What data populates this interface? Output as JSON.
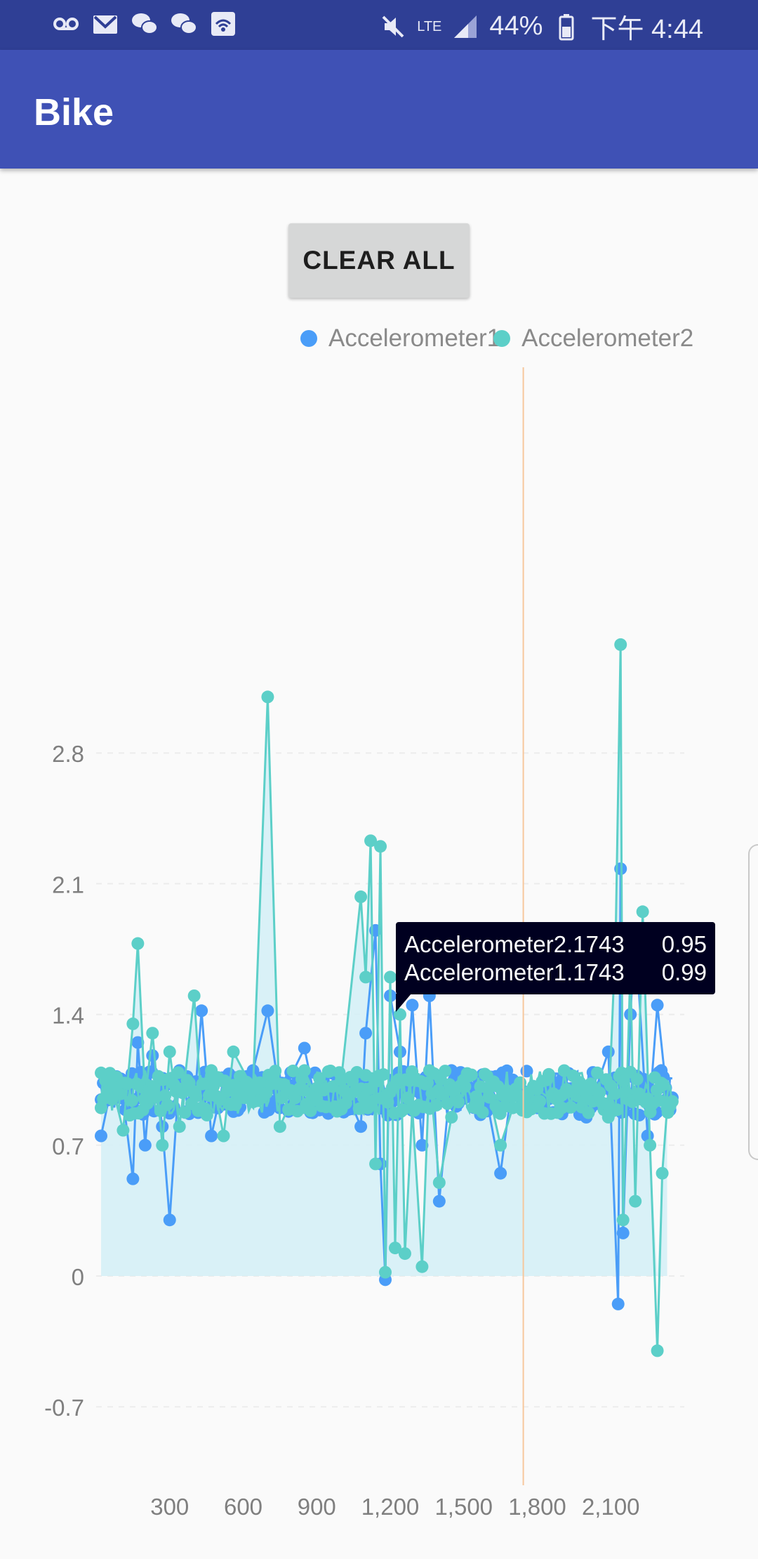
{
  "status_bar": {
    "battery": "44%",
    "time": "下午 4:44",
    "network": "LTE",
    "icons": [
      "voicemail-icon",
      "gmail-icon",
      "wechat-icon",
      "wechat-icon",
      "wifi-call-icon",
      "mute-icon",
      "lte-icon",
      "signal-icon",
      "battery-icon"
    ]
  },
  "app_bar": {
    "title": "Bike"
  },
  "clear_button": {
    "label": "CLEAR ALL"
  },
  "tooltip": {
    "rows": [
      {
        "label": "Accelerometer2.1743",
        "value": "0.95"
      },
      {
        "label": "Accelerometer1.1743",
        "value": "0.99"
      }
    ]
  },
  "colors": {
    "series1": "#4a9df8",
    "series2": "#5ccfc8",
    "crosshair": "#f6c79d",
    "area": "#d5f0f6"
  },
  "chart_data": {
    "type": "line",
    "legend": "top-right",
    "grid": true,
    "xlim": [
      0,
      2400
    ],
    "ylim": [
      -0.7,
      3.5
    ],
    "x_ticks": [
      "300",
      "600",
      "900",
      "1,200",
      "1,500",
      "1,800",
      "2,100"
    ],
    "y_ticks": [
      "-0.7",
      "0",
      "0.7",
      "1.4",
      "2.1",
      "2.8"
    ],
    "highlight_x": 1743,
    "series": [
      {
        "name": "Accelerometer1",
        "points": [
          [
            20,
            0.75
          ],
          [
            60,
            1.0
          ],
          [
            110,
            0.95
          ],
          [
            150,
            0.52
          ],
          [
            170,
            1.25
          ],
          [
            200,
            0.7
          ],
          [
            230,
            1.18
          ],
          [
            270,
            0.8
          ],
          [
            300,
            0.3
          ],
          [
            340,
            1.1
          ],
          [
            400,
            0.9
          ],
          [
            430,
            1.42
          ],
          [
            470,
            0.75
          ],
          [
            520,
            1.05
          ],
          [
            560,
            0.88
          ],
          [
            640,
            1.1
          ],
          [
            700,
            1.42
          ],
          [
            750,
            0.95
          ],
          [
            850,
            1.22
          ],
          [
            900,
            0.9
          ],
          [
            1000,
            1.05
          ],
          [
            1080,
            0.8
          ],
          [
            1100,
            1.3
          ],
          [
            1140,
            1.85
          ],
          [
            1160,
            0.6
          ],
          [
            1180,
            -0.02
          ],
          [
            1200,
            1.5
          ],
          [
            1240,
            1.2
          ],
          [
            1260,
            0.9
          ],
          [
            1290,
            1.45
          ],
          [
            1330,
            0.7
          ],
          [
            1360,
            1.5
          ],
          [
            1400,
            0.4
          ],
          [
            1450,
            1.1
          ],
          [
            1500,
            0.95
          ],
          [
            1550,
            1.0
          ],
          [
            1600,
            0.9
          ],
          [
            1650,
            0.55
          ],
          [
            1700,
            1.05
          ],
          [
            1743,
            0.99
          ],
          [
            1800,
            0.9
          ],
          [
            1900,
            1.05
          ],
          [
            2000,
            0.85
          ],
          [
            2090,
            1.2
          ],
          [
            2130,
            -0.15
          ],
          [
            2140,
            2.18
          ],
          [
            2150,
            0.23
          ],
          [
            2180,
            1.4
          ],
          [
            2200,
            1.85
          ],
          [
            2250,
            0.75
          ],
          [
            2290,
            1.45
          ],
          [
            2330,
            0.95
          ]
        ]
      },
      {
        "name": "Accelerometer2",
        "points": [
          [
            20,
            0.9
          ],
          [
            60,
            1.05
          ],
          [
            110,
            0.78
          ],
          [
            150,
            1.35
          ],
          [
            170,
            1.78
          ],
          [
            200,
            0.95
          ],
          [
            230,
            1.3
          ],
          [
            270,
            0.7
          ],
          [
            300,
            1.2
          ],
          [
            340,
            0.8
          ],
          [
            400,
            1.5
          ],
          [
            430,
            0.9
          ],
          [
            470,
            1.1
          ],
          [
            520,
            0.75
          ],
          [
            560,
            1.2
          ],
          [
            640,
            1.0
          ],
          [
            700,
            3.1
          ],
          [
            750,
            0.8
          ],
          [
            850,
            1.1
          ],
          [
            900,
            0.95
          ],
          [
            1000,
            1.05
          ],
          [
            1080,
            2.03
          ],
          [
            1100,
            1.6
          ],
          [
            1120,
            2.33
          ],
          [
            1140,
            0.6
          ],
          [
            1160,
            2.3
          ],
          [
            1180,
            0.02
          ],
          [
            1200,
            1.6
          ],
          [
            1220,
            0.15
          ],
          [
            1240,
            1.4
          ],
          [
            1260,
            0.12
          ],
          [
            1290,
            0.9
          ],
          [
            1330,
            0.05
          ],
          [
            1360,
            1.1
          ],
          [
            1400,
            0.5
          ],
          [
            1450,
            0.85
          ],
          [
            1500,
            1.05
          ],
          [
            1550,
            0.9
          ],
          [
            1600,
            1.0
          ],
          [
            1650,
            0.7
          ],
          [
            1700,
            0.9
          ],
          [
            1743,
            0.95
          ],
          [
            1800,
            1.0
          ],
          [
            1900,
            0.9
          ],
          [
            2000,
            1.0
          ],
          [
            2090,
            0.85
          ],
          [
            2120,
            1.82
          ],
          [
            2140,
            3.38
          ],
          [
            2150,
            0.3
          ],
          [
            2180,
            1.65
          ],
          [
            2200,
            0.4
          ],
          [
            2230,
            1.95
          ],
          [
            2260,
            0.7
          ],
          [
            2290,
            -0.4
          ],
          [
            2310,
            0.55
          ],
          [
            2330,
            0.9
          ]
        ]
      }
    ],
    "band": {
      "y_center": 0.98,
      "y_spread": 0.12
    }
  }
}
